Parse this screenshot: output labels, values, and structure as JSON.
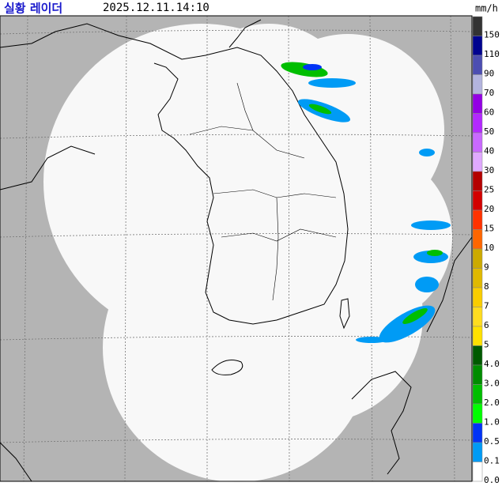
{
  "header": {
    "title": "실황 레이더",
    "time": "2025.12.11.14:10"
  },
  "legend": {
    "unit": "mm/h",
    "levels": [
      {
        "label": "150",
        "color": "#333333"
      },
      {
        "label": "110",
        "color": "#00038f"
      },
      {
        "label": "90",
        "color": "#4c4eb1"
      },
      {
        "label": "70",
        "color": "#b3b4de"
      },
      {
        "label": "60",
        "color": "#9300e4"
      },
      {
        "label": "50",
        "color": "#b329ff"
      },
      {
        "label": "40",
        "color": "#c969ff"
      },
      {
        "label": "30",
        "color": "#e0a9ff"
      },
      {
        "label": "25",
        "color": "#b40000"
      },
      {
        "label": "20",
        "color": "#d20000"
      },
      {
        "label": "15",
        "color": "#ff3200"
      },
      {
        "label": "10",
        "color": "#ff6600"
      },
      {
        "label": "9",
        "color": "#ccaa00"
      },
      {
        "label": "8",
        "color": "#e0b900"
      },
      {
        "label": "7",
        "color": "#f9cd00"
      },
      {
        "label": "6",
        "color": "#ffdc1f"
      },
      {
        "label": "5",
        "color": "#ffe100"
      },
      {
        "label": "4.0",
        "color": "#005a00"
      },
      {
        "label": "3.0",
        "color": "#008c00"
      },
      {
        "label": "2.0",
        "color": "#00be00"
      },
      {
        "label": "1.0",
        "color": "#00ff00"
      },
      {
        "label": "0.5",
        "color": "#0033f5"
      },
      {
        "label": "0.1",
        "color": "#009bf5"
      },
      {
        "label": "0.0",
        "color": "#ffffff"
      }
    ]
  }
}
